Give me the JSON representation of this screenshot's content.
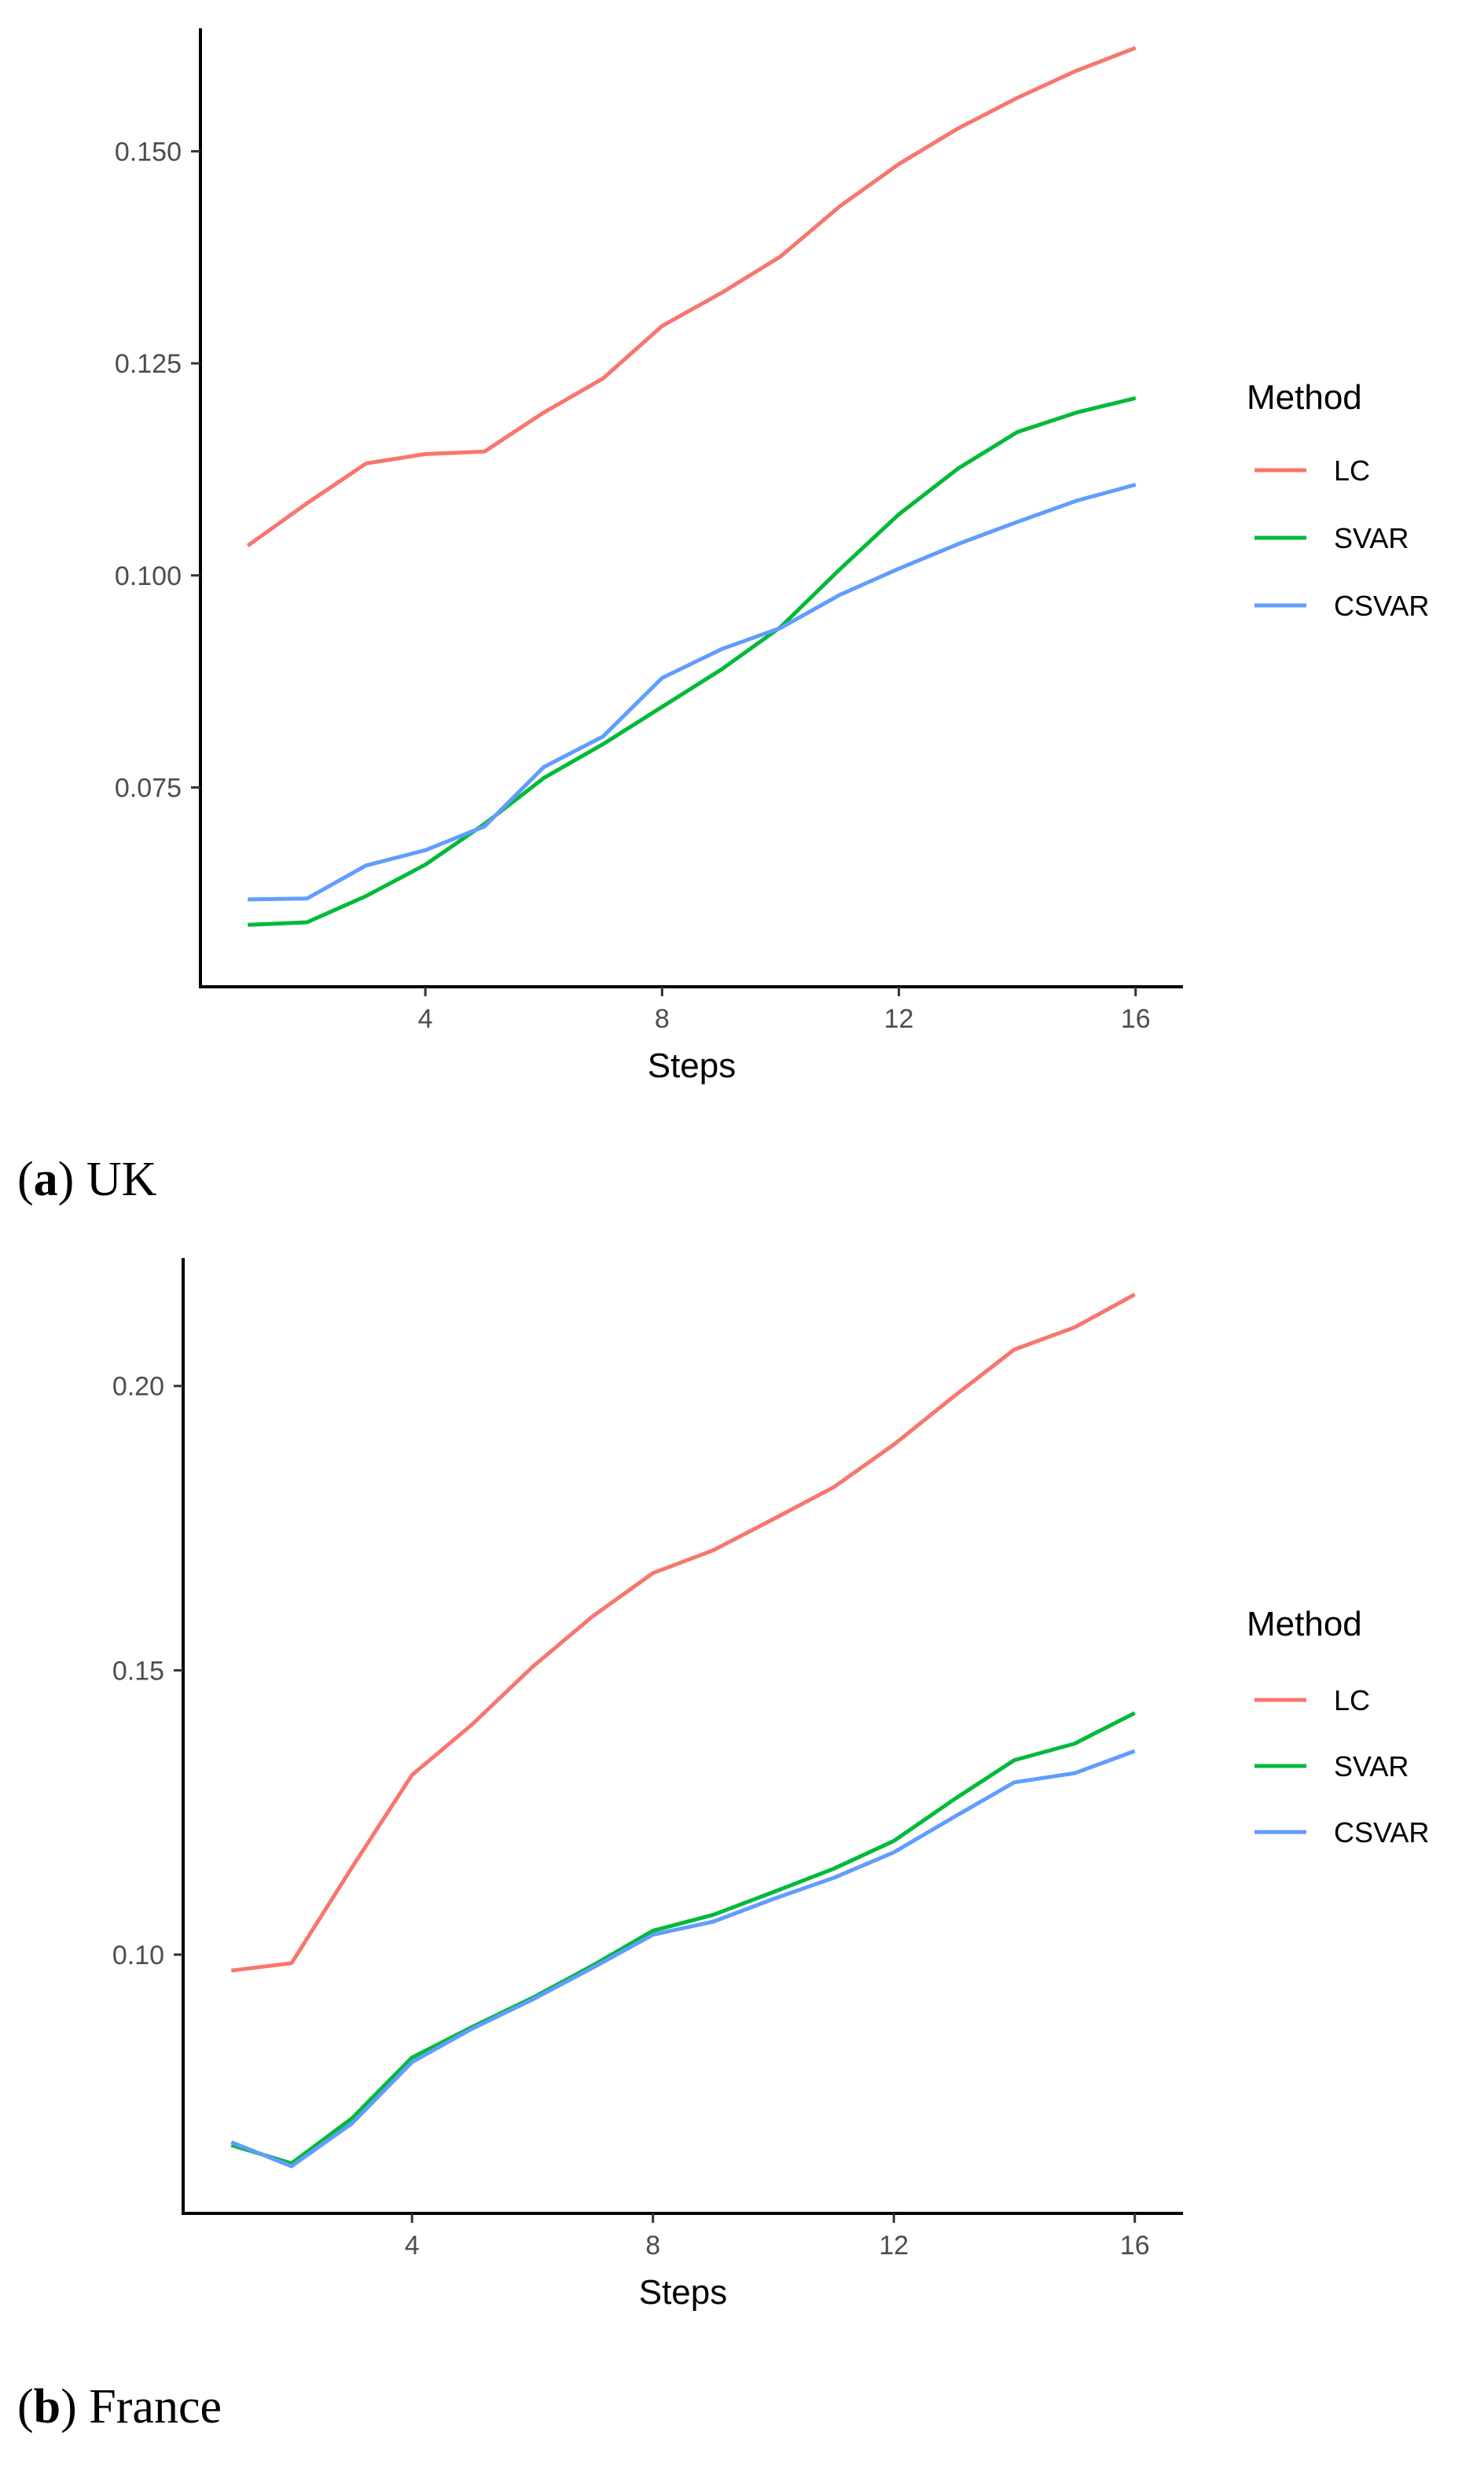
{
  "chart_data": [
    {
      "type": "line",
      "caption_letter": "a",
      "caption_text": "UK",
      "xlabel": "Steps",
      "ylabel": "",
      "x": [
        1,
        2,
        3,
        4,
        5,
        6,
        7,
        8,
        9,
        10,
        11,
        12,
        13,
        14,
        15,
        16
      ],
      "xticks": [
        4,
        8,
        12,
        16
      ],
      "xlim": [
        0.2,
        16.8
      ],
      "yticks": [
        0.075,
        0.1,
        0.125,
        0.15
      ],
      "ytick_labels": [
        "0.075",
        "0.100",
        "0.125",
        "0.150"
      ],
      "ylim": [
        0.0515,
        0.1645
      ],
      "legend": {
        "title": "Method",
        "placement": "right"
      },
      "series": [
        {
          "name": "LC",
          "color": "#F8766D",
          "values": [
            0.1035,
            0.1085,
            0.1132,
            0.1143,
            0.1146,
            0.1192,
            0.1232,
            0.1294,
            0.1333,
            0.1376,
            0.1435,
            0.1485,
            0.1527,
            0.1563,
            0.1595,
            0.1622
          ]
        },
        {
          "name": "SVAR",
          "color": "#00BA38",
          "values": [
            0.0588,
            0.0591,
            0.0622,
            0.0659,
            0.0707,
            0.0761,
            0.0801,
            0.0845,
            0.0889,
            0.0939,
            0.1007,
            0.1072,
            0.1126,
            0.1169,
            0.1192,
            0.1209
          ]
        },
        {
          "name": "CSVAR",
          "color": "#619CFF",
          "values": [
            0.0618,
            0.0619,
            0.0658,
            0.0676,
            0.0704,
            0.0774,
            0.081,
            0.0879,
            0.0913,
            0.0938,
            0.0977,
            0.1008,
            0.1037,
            0.1063,
            0.1088,
            0.1107
          ]
        }
      ]
    },
    {
      "type": "line",
      "caption_letter": "b",
      "caption_text": "France",
      "xlabel": "Steps",
      "ylabel": "",
      "x": [
        1,
        2,
        3,
        4,
        5,
        6,
        7,
        8,
        9,
        10,
        11,
        12,
        13,
        14,
        15,
        16
      ],
      "xticks": [
        4,
        8,
        12,
        16
      ],
      "xlim": [
        0.2,
        16.8
      ],
      "yticks": [
        0.1,
        0.15,
        0.2
      ],
      "ytick_labels": [
        "0.10",
        "0.15",
        "0.20"
      ],
      "ylim": [
        0.0545,
        0.2225
      ],
      "legend": {
        "title": "Method",
        "placement": "right"
      },
      "series": [
        {
          "name": "LC",
          "color": "#F8766D",
          "values": [
            0.0972,
            0.0985,
            0.1153,
            0.1316,
            0.1405,
            0.1506,
            0.1595,
            0.1671,
            0.1711,
            0.1766,
            0.1822,
            0.1897,
            0.1982,
            0.2064,
            0.2103,
            0.2161
          ]
        },
        {
          "name": "SVAR",
          "color": "#00BA38",
          "values": [
            0.0665,
            0.0633,
            0.0712,
            0.0819,
            0.0873,
            0.0924,
            0.0981,
            0.1042,
            0.107,
            0.111,
            0.1151,
            0.12,
            0.1273,
            0.1342,
            0.1371,
            0.1425
          ]
        },
        {
          "name": "CSVAR",
          "color": "#619CFF",
          "values": [
            0.067,
            0.0628,
            0.0703,
            0.0811,
            0.087,
            0.0921,
            0.0977,
            0.1035,
            0.1058,
            0.1098,
            0.1135,
            0.118,
            0.1242,
            0.1303,
            0.1319,
            0.1358
          ]
        }
      ]
    }
  ]
}
